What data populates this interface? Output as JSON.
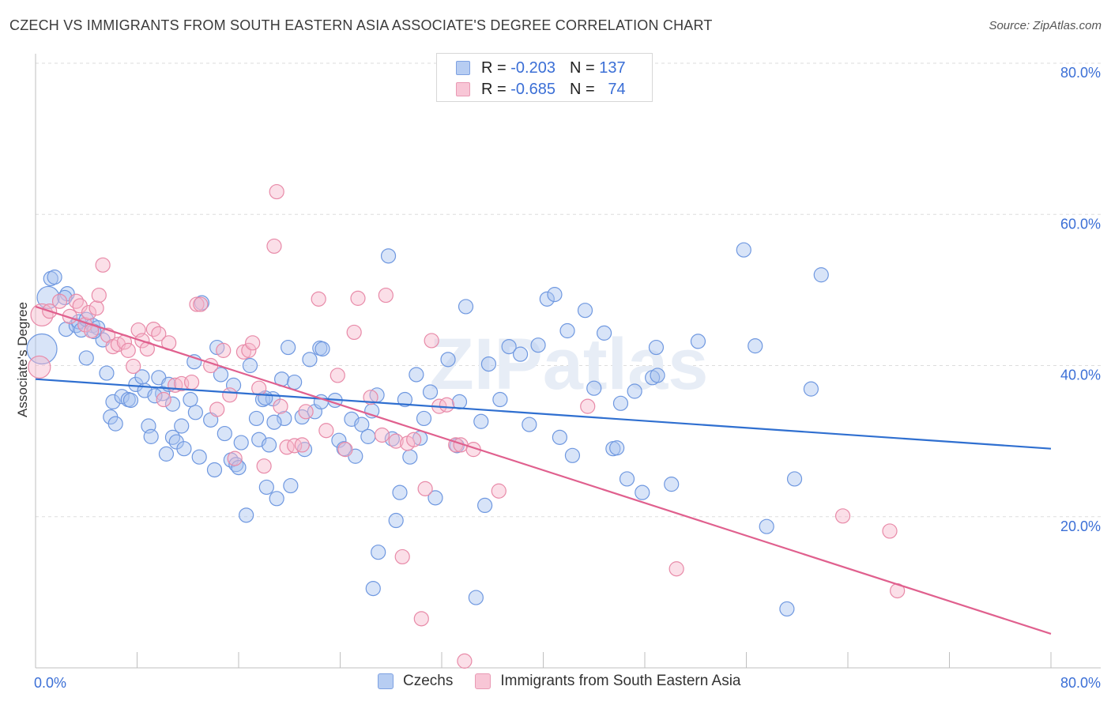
{
  "header": {
    "title": "CZECH VS IMMIGRANTS FROM SOUTH EASTERN ASIA ASSOCIATE'S DEGREE CORRELATION CHART",
    "source": "Source: ZipAtlas.com"
  },
  "watermark": "ZIPatlas",
  "legend": {
    "rows": [
      {
        "r_label": "R =",
        "r_value": "-0.203",
        "n_label": "N =",
        "n_value": "137"
      },
      {
        "r_label": "R =",
        "r_value": "-0.685",
        "n_label": "N =",
        "n_value": "74"
      }
    ]
  },
  "colors": {
    "czech_fill": "#a9c4f0",
    "czech_stroke": "#6f98e0",
    "czech_line": "#2f6fd0",
    "sea_fill": "#f6b9cc",
    "sea_stroke": "#e88aa8",
    "sea_line": "#e0608e",
    "axis_label": "#3b6fd6",
    "grid": "#dddddd"
  },
  "chart_data": {
    "type": "scatter",
    "title": "CZECH VS IMMIGRANTS FROM SOUTH EASTERN ASIA ASSOCIATE'S DEGREE CORRELATION CHART",
    "xlabel": "",
    "ylabel": "Associate's Degree",
    "xlim": [
      0,
      80
    ],
    "ylim": [
      0,
      80
    ],
    "x_ticks": [
      {
        "value": 0,
        "label": "0.0%"
      },
      {
        "value": 80,
        "label": "80.0%"
      }
    ],
    "y_ticks": [
      {
        "value": 20,
        "label": "20.0%"
      },
      {
        "value": 40,
        "label": "40.0%"
      },
      {
        "value": 60,
        "label": "60.0%"
      },
      {
        "value": 80,
        "label": "80.0%"
      }
    ],
    "grid": true,
    "legend_position": "top-center",
    "series": [
      {
        "name": "Czechs",
        "r": -0.203,
        "n": 137,
        "trend": [
          [
            0,
            38.2
          ],
          [
            80,
            29.0
          ]
        ],
        "points": [
          [
            0.5,
            42.2,
            3
          ],
          [
            1.0,
            49.0,
            2
          ],
          [
            1.2,
            51.5,
            1
          ],
          [
            1.5,
            51.7,
            1
          ],
          [
            2.5,
            49.5,
            1
          ],
          [
            2.3,
            49.0,
            1
          ],
          [
            2.4,
            44.8,
            1
          ],
          [
            3.2,
            45.3,
            1
          ],
          [
            3.4,
            45.8,
            1
          ],
          [
            3.6,
            44.7,
            1
          ],
          [
            4.0,
            46.1,
            1
          ],
          [
            4.5,
            45.3,
            1
          ],
          [
            4.9,
            45.0,
            1
          ],
          [
            5.3,
            43.4,
            1
          ],
          [
            4.6,
            44.5,
            1
          ],
          [
            4.0,
            41.0,
            1
          ],
          [
            5.6,
            39.0,
            1
          ],
          [
            6.1,
            35.2,
            1
          ],
          [
            5.9,
            33.2,
            1
          ],
          [
            6.3,
            32.3,
            1
          ],
          [
            6.8,
            35.9,
            1
          ],
          [
            7.3,
            35.5,
            1
          ],
          [
            7.5,
            35.4,
            1
          ],
          [
            7.9,
            37.5,
            1
          ],
          [
            8.4,
            38.5,
            1
          ],
          [
            8.6,
            36.7,
            1
          ],
          [
            8.9,
            32.0,
            1
          ],
          [
            9.1,
            30.6,
            1
          ],
          [
            9.7,
            38.4,
            1
          ],
          [
            10.0,
            36.3,
            1
          ],
          [
            10.3,
            28.3,
            1
          ],
          [
            10.5,
            37.5,
            1
          ],
          [
            10.8,
            30.5,
            1
          ],
          [
            11.1,
            29.9,
            1
          ],
          [
            11.5,
            32.0,
            1
          ],
          [
            11.7,
            29.0,
            1
          ],
          [
            12.2,
            35.5,
            1
          ],
          [
            12.5,
            40.5,
            1
          ],
          [
            12.6,
            33.8,
            1
          ],
          [
            12.9,
            27.9,
            1
          ],
          [
            13.8,
            32.8,
            1
          ],
          [
            14.1,
            26.2,
            1
          ],
          [
            14.3,
            42.4,
            1
          ],
          [
            14.6,
            38.8,
            1
          ],
          [
            14.9,
            31.0,
            1
          ],
          [
            15.4,
            27.5,
            1
          ],
          [
            15.6,
            37.4,
            1
          ],
          [
            15.8,
            26.9,
            1
          ],
          [
            16.0,
            26.5,
            1
          ],
          [
            16.2,
            29.8,
            1
          ],
          [
            16.6,
            20.2,
            1
          ],
          [
            16.9,
            40.0,
            1
          ],
          [
            17.4,
            33.0,
            1
          ],
          [
            17.6,
            30.2,
            1
          ],
          [
            17.9,
            35.5,
            1
          ],
          [
            18.2,
            23.9,
            1
          ],
          [
            18.4,
            29.5,
            1
          ],
          [
            18.7,
            35.6,
            1
          ],
          [
            19.0,
            22.4,
            1
          ],
          [
            19.4,
            38.2,
            1
          ],
          [
            19.9,
            42.4,
            1
          ],
          [
            19.6,
            33.0,
            1
          ],
          [
            20.1,
            24.1,
            1
          ],
          [
            20.4,
            37.8,
            1
          ],
          [
            21.0,
            33.2,
            1
          ],
          [
            21.2,
            28.9,
            1
          ],
          [
            21.6,
            40.8,
            1
          ],
          [
            22.0,
            33.9,
            1
          ],
          [
            22.4,
            42.3,
            1
          ],
          [
            22.6,
            42.2,
            1
          ],
          [
            13.1,
            48.3,
            1
          ],
          [
            23.6,
            35.4,
            1
          ],
          [
            23.9,
            30.1,
            1
          ],
          [
            24.3,
            29.0,
            1
          ],
          [
            24.9,
            32.9,
            1
          ],
          [
            25.2,
            28.0,
            1
          ],
          [
            25.7,
            32.2,
            1
          ],
          [
            26.2,
            30.6,
            1
          ],
          [
            26.5,
            34.0,
            1
          ],
          [
            26.9,
            36.1,
            1
          ],
          [
            27.8,
            54.5,
            1
          ],
          [
            28.1,
            30.3,
            1
          ],
          [
            28.4,
            19.5,
            1
          ],
          [
            28.7,
            23.2,
            1
          ],
          [
            27.0,
            15.3,
            1
          ],
          [
            26.6,
            10.5,
            1
          ],
          [
            29.1,
            35.5,
            1
          ],
          [
            29.5,
            27.9,
            1
          ],
          [
            30.0,
            38.8,
            1
          ],
          [
            30.3,
            30.4,
            1
          ],
          [
            30.6,
            33.0,
            1
          ],
          [
            31.1,
            36.5,
            1
          ],
          [
            31.5,
            22.5,
            1
          ],
          [
            32.5,
            40.8,
            1
          ],
          [
            33.2,
            29.4,
            1
          ],
          [
            33.9,
            47.8,
            1
          ],
          [
            33.4,
            35.2,
            1
          ],
          [
            35.1,
            32.6,
            1
          ],
          [
            35.4,
            21.5,
            1
          ],
          [
            35.7,
            40.2,
            1
          ],
          [
            36.6,
            35.5,
            1
          ],
          [
            37.3,
            42.5,
            1
          ],
          [
            38.2,
            41.5,
            1
          ],
          [
            38.9,
            32.2,
            1
          ],
          [
            39.6,
            42.7,
            1
          ],
          [
            40.3,
            48.8,
            1
          ],
          [
            40.9,
            49.4,
            1
          ],
          [
            41.3,
            30.5,
            1
          ],
          [
            41.9,
            44.6,
            1
          ],
          [
            42.3,
            28.1,
            1
          ],
          [
            43.3,
            47.3,
            1
          ],
          [
            44.0,
            37.0,
            1
          ],
          [
            44.8,
            44.3,
            1
          ],
          [
            45.5,
            29.0,
            1
          ],
          [
            45.8,
            29.1,
            1
          ],
          [
            46.1,
            35.0,
            1
          ],
          [
            46.6,
            25.0,
            1
          ],
          [
            47.2,
            36.6,
            1
          ],
          [
            47.8,
            23.2,
            1
          ],
          [
            48.6,
            38.4,
            1
          ],
          [
            48.9,
            42.4,
            1
          ],
          [
            49.0,
            38.7,
            1
          ],
          [
            50.1,
            24.3,
            1
          ],
          [
            52.2,
            43.2,
            1
          ],
          [
            55.8,
            55.3,
            1
          ],
          [
            56.7,
            42.6,
            1
          ],
          [
            57.6,
            18.7,
            1
          ],
          [
            59.2,
            7.8,
            1
          ],
          [
            59.8,
            25.0,
            1
          ],
          [
            61.1,
            36.9,
            1
          ],
          [
            61.9,
            52.0,
            1
          ],
          [
            34.7,
            9.3,
            1
          ],
          [
            18.1,
            35.7,
            1
          ],
          [
            22.5,
            35.2,
            1
          ],
          [
            9.4,
            36.0,
            1
          ],
          [
            10.8,
            34.9,
            1
          ],
          [
            18.8,
            32.5,
            1
          ]
        ]
      },
      {
        "name": "Immigrants from South Eastern Asia",
        "r": -0.685,
        "n": 74,
        "trend": [
          [
            0,
            47.8
          ],
          [
            80,
            4.5
          ]
        ],
        "points": [
          [
            0.3,
            39.8,
            2
          ],
          [
            0.5,
            46.7,
            2
          ],
          [
            1.1,
            47.2,
            1
          ],
          [
            1.9,
            48.5,
            1
          ],
          [
            2.7,
            46.5,
            1
          ],
          [
            3.2,
            48.5,
            1
          ],
          [
            3.5,
            47.9,
            1
          ],
          [
            3.9,
            45.4,
            1
          ],
          [
            4.2,
            47.0,
            1
          ],
          [
            4.4,
            44.6,
            1
          ],
          [
            4.8,
            47.6,
            1
          ],
          [
            5.0,
            49.3,
            1
          ],
          [
            5.3,
            53.3,
            1
          ],
          [
            5.7,
            44.0,
            1
          ],
          [
            6.1,
            42.5,
            1
          ],
          [
            6.5,
            42.8,
            1
          ],
          [
            7.0,
            43.1,
            1
          ],
          [
            7.3,
            42.0,
            1
          ],
          [
            7.7,
            39.9,
            1
          ],
          [
            8.1,
            44.7,
            1
          ],
          [
            8.4,
            43.3,
            1
          ],
          [
            8.8,
            42.2,
            1
          ],
          [
            9.3,
            44.8,
            1
          ],
          [
            9.7,
            44.2,
            1
          ],
          [
            10.1,
            35.5,
            1
          ],
          [
            10.5,
            43.0,
            1
          ],
          [
            11.0,
            37.4,
            1
          ],
          [
            11.5,
            37.6,
            1
          ],
          [
            12.3,
            37.8,
            1
          ],
          [
            12.7,
            48.1,
            1
          ],
          [
            13.0,
            48.1,
            1
          ],
          [
            13.8,
            40.0,
            1
          ],
          [
            14.3,
            34.2,
            1
          ],
          [
            14.8,
            42.0,
            1
          ],
          [
            15.3,
            36.1,
            1
          ],
          [
            15.7,
            27.7,
            1
          ],
          [
            16.4,
            41.8,
            1
          ],
          [
            16.8,
            42.0,
            1
          ],
          [
            17.1,
            43.0,
            1
          ],
          [
            17.6,
            37.0,
            1
          ],
          [
            18.0,
            26.7,
            1
          ],
          [
            18.8,
            55.8,
            1
          ],
          [
            19.0,
            63.0,
            1
          ],
          [
            19.3,
            34.6,
            1
          ],
          [
            19.8,
            29.2,
            1
          ],
          [
            20.4,
            29.4,
            1
          ],
          [
            21.0,
            29.5,
            1
          ],
          [
            21.3,
            33.9,
            1
          ],
          [
            22.3,
            48.8,
            1
          ],
          [
            22.9,
            31.4,
            1
          ],
          [
            23.8,
            38.7,
            1
          ],
          [
            24.4,
            28.9,
            1
          ],
          [
            25.1,
            44.4,
            1
          ],
          [
            25.4,
            48.9,
            1
          ],
          [
            26.4,
            35.8,
            1
          ],
          [
            27.3,
            30.8,
            1
          ],
          [
            27.6,
            49.3,
            1
          ],
          [
            28.4,
            30.0,
            1
          ],
          [
            28.9,
            14.7,
            1
          ],
          [
            29.3,
            29.7,
            1
          ],
          [
            29.8,
            30.2,
            1
          ],
          [
            30.4,
            6.5,
            1
          ],
          [
            30.7,
            23.7,
            1
          ],
          [
            31.2,
            43.3,
            1
          ],
          [
            31.8,
            34.6,
            1
          ],
          [
            32.4,
            34.8,
            1
          ],
          [
            33.1,
            29.5,
            1
          ],
          [
            33.5,
            29.5,
            1
          ],
          [
            33.8,
            0.9,
            1
          ],
          [
            34.5,
            28.9,
            1
          ],
          [
            36.5,
            23.4,
            1
          ],
          [
            43.5,
            34.6,
            1
          ],
          [
            50.5,
            13.1,
            1
          ],
          [
            63.6,
            20.1,
            1
          ],
          [
            67.3,
            18.1,
            1
          ],
          [
            67.9,
            10.2,
            1
          ]
        ]
      }
    ]
  }
}
